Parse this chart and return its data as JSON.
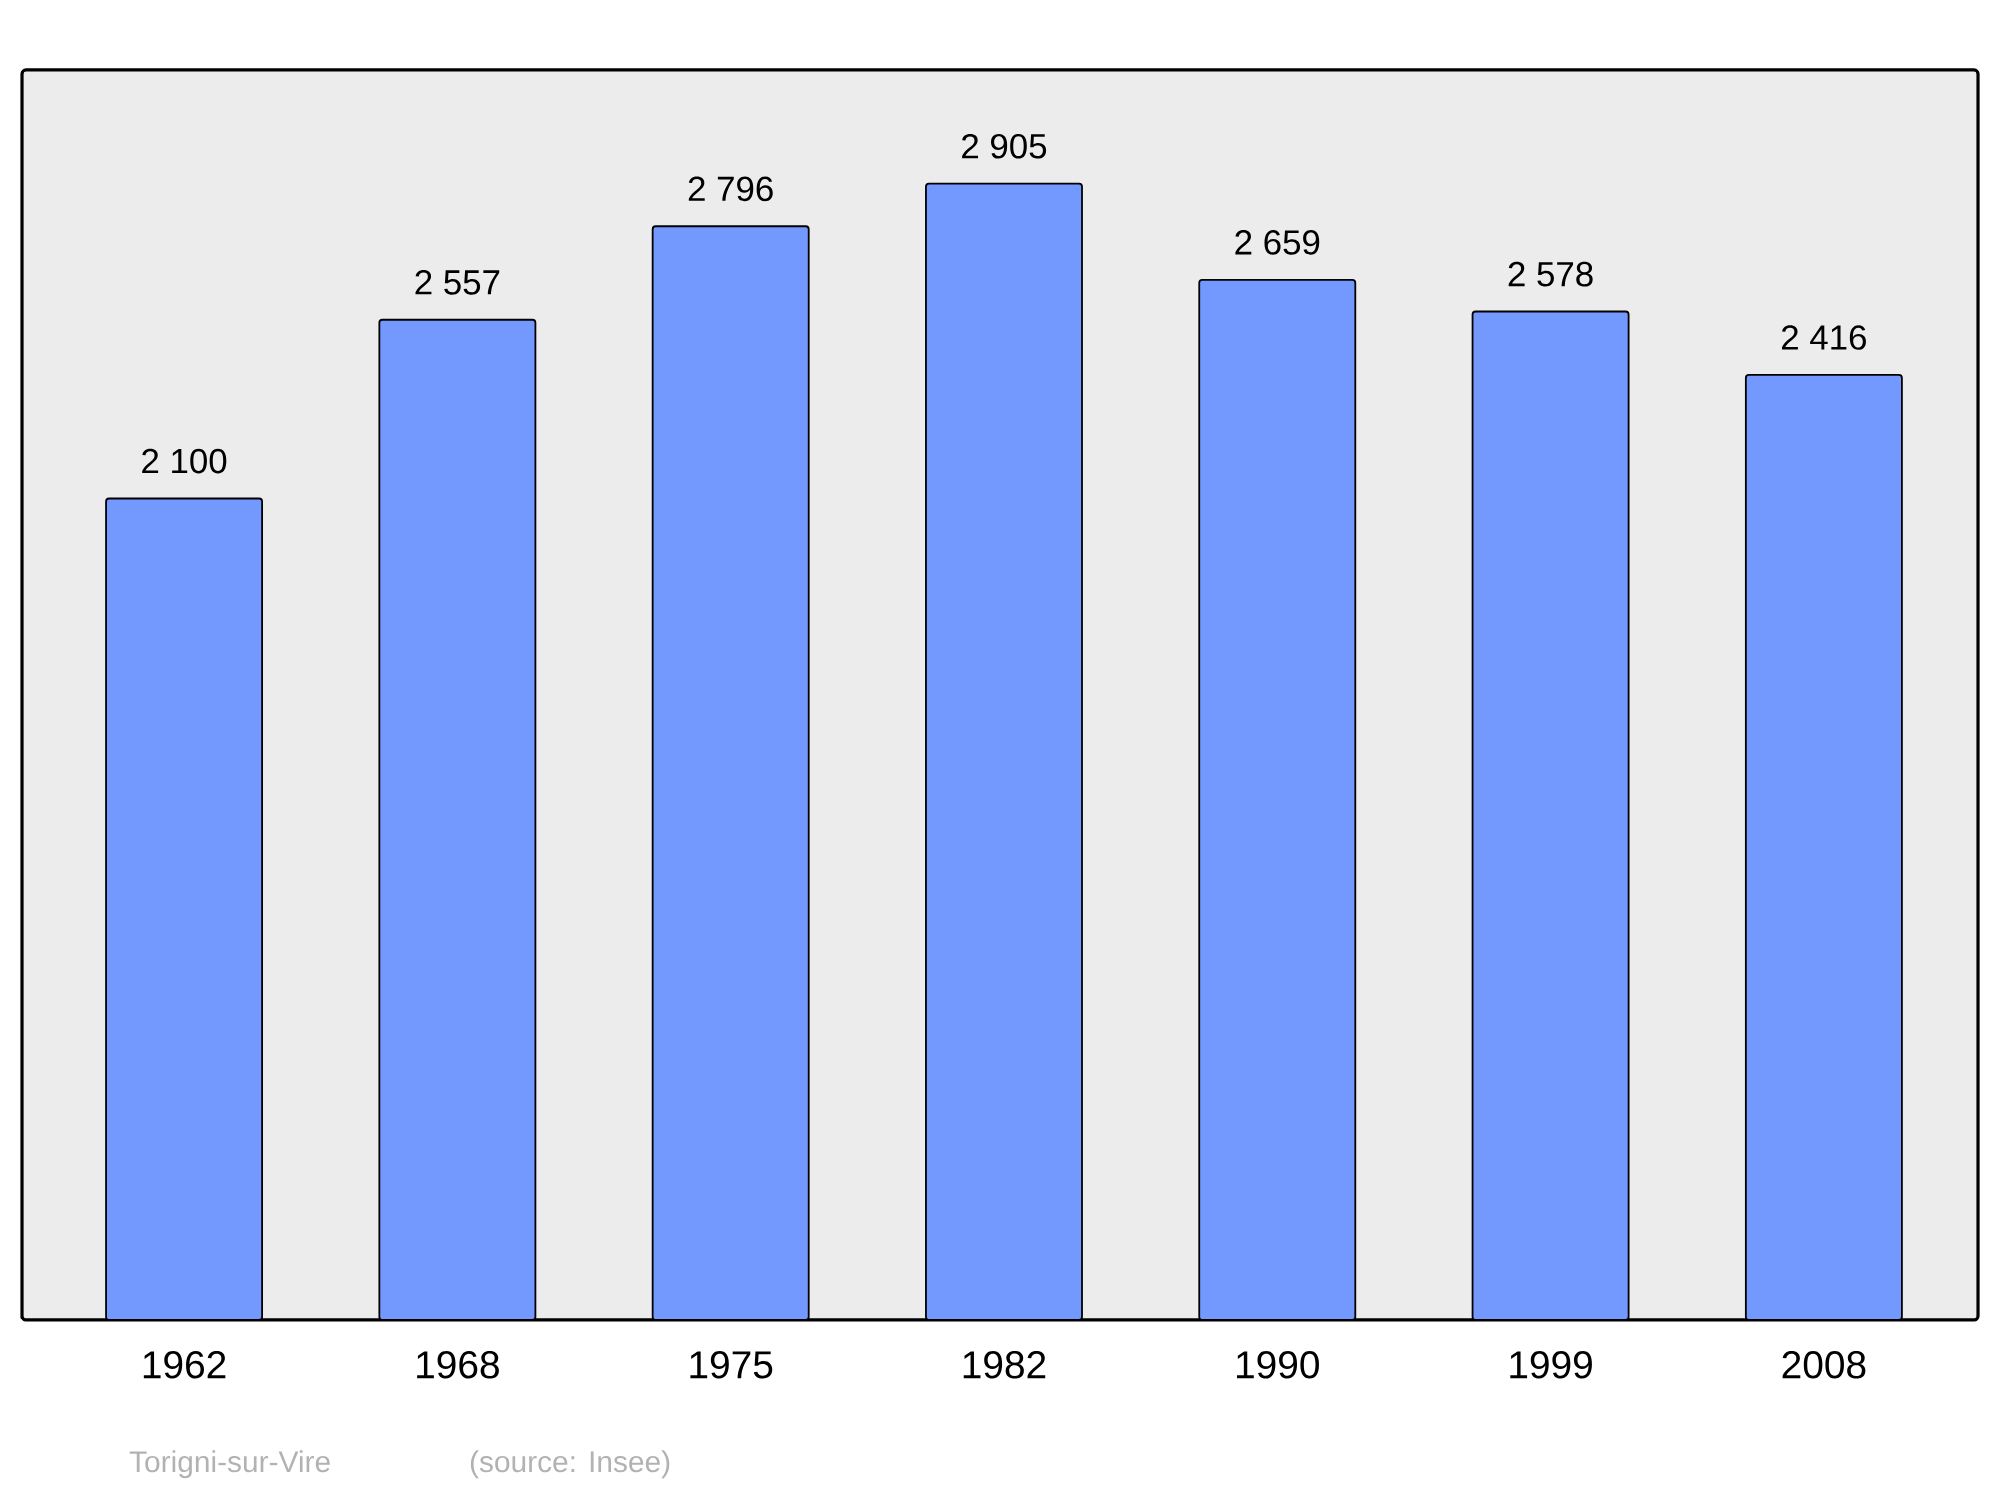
{
  "chart_data": {
    "type": "bar",
    "categories": [
      "1962",
      "1968",
      "1975",
      "1982",
      "1990",
      "1999",
      "2008"
    ],
    "values": [
      2100,
      2557,
      2796,
      2905,
      2659,
      2578,
      2416
    ],
    "value_labels": [
      "2 100",
      "2 557",
      "2 796",
      "2 905",
      "2 659",
      "2 578",
      "2 416"
    ],
    "color": "#7399ff",
    "tick_labels": "x",
    "annotations": [
      "Torigni-sur-Vire",
      "(source: Insee)"
    ]
  }
}
